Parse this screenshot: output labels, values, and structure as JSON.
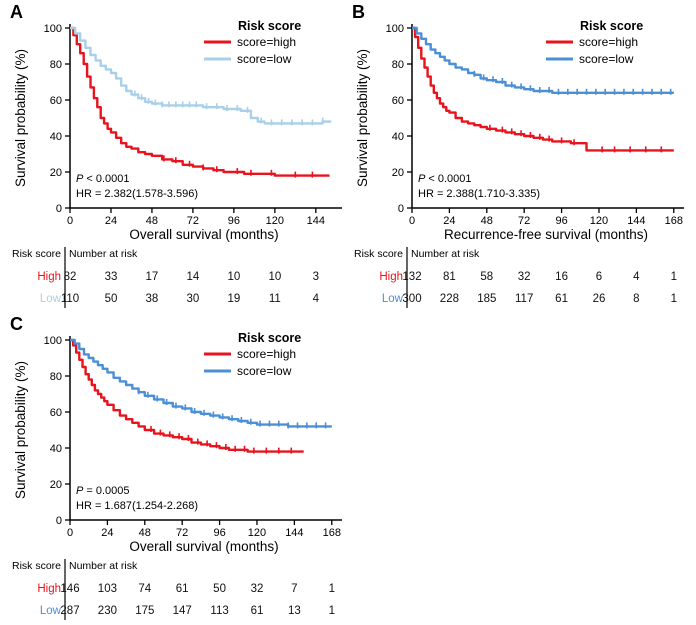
{
  "page": {
    "background": "#ffffff"
  },
  "chart_data": [
    {
      "type": "line",
      "subtype": "kaplan-meier",
      "panel_label": "A",
      "xlabel": "Overall survival (months)",
      "ylabel": "Survival probability (%)",
      "xlim": [
        0,
        157
      ],
      "ylim": [
        0,
        100
      ],
      "xticks": [
        0,
        24,
        48,
        72,
        96,
        120,
        144
      ],
      "yticks": [
        0,
        20,
        40,
        60,
        80,
        100
      ],
      "grid": false,
      "legend_title": "Risk score",
      "legend_position": "top-right",
      "annotations": [
        "P < 0.0001",
        "HR = 2.382(1.578-3.596)"
      ],
      "series": [
        {
          "name": "score=high",
          "color": "#e8131d",
          "step_points": [
            [
              0,
              100
            ],
            [
              2,
              96
            ],
            [
              4,
              91
            ],
            [
              6,
              86
            ],
            [
              8,
              80
            ],
            [
              10,
              73
            ],
            [
              12,
              67
            ],
            [
              14,
              61
            ],
            [
              16,
              56
            ],
            [
              18,
              50
            ],
            [
              20,
              47
            ],
            [
              22,
              44
            ],
            [
              24,
              42
            ],
            [
              27,
              39
            ],
            [
              30,
              36
            ],
            [
              33,
              34
            ],
            [
              36,
              33
            ],
            [
              40,
              31
            ],
            [
              44,
              30
            ],
            [
              48,
              29
            ],
            [
              54,
              27
            ],
            [
              60,
              26
            ],
            [
              66,
              24
            ],
            [
              72,
              23
            ],
            [
              78,
              22
            ],
            [
              84,
              21
            ],
            [
              90,
              20
            ],
            [
              96,
              20
            ],
            [
              102,
              19
            ],
            [
              110,
              19
            ],
            [
              120,
              18
            ],
            [
              152,
              18
            ]
          ],
          "censor_x": [
            55,
            62,
            70,
            78,
            86,
            98,
            106,
            118,
            132,
            142
          ]
        },
        {
          "name": "score=low",
          "color": "#a9cfe9",
          "step_points": [
            [
              0,
              100
            ],
            [
              3,
              97
            ],
            [
              6,
              93
            ],
            [
              9,
              89
            ],
            [
              12,
              85
            ],
            [
              15,
              82
            ],
            [
              18,
              79
            ],
            [
              21,
              77
            ],
            [
              24,
              75
            ],
            [
              27,
              72
            ],
            [
              30,
              68
            ],
            [
              33,
              65
            ],
            [
              36,
              63
            ],
            [
              40,
              61
            ],
            [
              44,
              59
            ],
            [
              48,
              58
            ],
            [
              54,
              57
            ],
            [
              66,
              57
            ],
            [
              72,
              57
            ],
            [
              78,
              56
            ],
            [
              84,
              56
            ],
            [
              90,
              55
            ],
            [
              96,
              55
            ],
            [
              100,
              54
            ],
            [
              106,
              50
            ],
            [
              110,
              48
            ],
            [
              114,
              47
            ],
            [
              120,
              47
            ],
            [
              140,
              47
            ],
            [
              148,
              48
            ],
            [
              153,
              48
            ]
          ],
          "censor_x": [
            38,
            42,
            46,
            50,
            54,
            58,
            62,
            66,
            70,
            74,
            80,
            86,
            92,
            98,
            104,
            112,
            118,
            124,
            130,
            136,
            142,
            148
          ]
        }
      ],
      "risk_table": {
        "col_header": "Risk score",
        "row_header": "Number at risk",
        "rows": [
          {
            "label": "High",
            "color": "#e8131d",
            "counts": [
              82,
              33,
              17,
              14,
              10,
              10,
              3
            ]
          },
          {
            "label": "Low",
            "color": "#a9cfe9",
            "counts": [
              110,
              50,
              38,
              30,
              19,
              11,
              4
            ]
          }
        ]
      }
    },
    {
      "type": "line",
      "subtype": "kaplan-meier",
      "panel_label": "B",
      "xlabel": "Recurrence-free survival (months)",
      "ylabel": "Survival probability (%)",
      "xlim": [
        0,
        172
      ],
      "ylim": [
        0,
        100
      ],
      "xticks": [
        0,
        24,
        48,
        72,
        96,
        120,
        144,
        168
      ],
      "yticks": [
        0,
        20,
        40,
        60,
        80,
        100
      ],
      "grid": false,
      "legend_title": "Risk score",
      "legend_position": "top-right",
      "annotations": [
        "P < 0.0001",
        "HR = 2.388(1.710-3.335)"
      ],
      "series": [
        {
          "name": "score=high",
          "color": "#e8131d",
          "step_points": [
            [
              0,
              100
            ],
            [
              2,
              95
            ],
            [
              4,
              89
            ],
            [
              6,
              83
            ],
            [
              8,
              78
            ],
            [
              10,
              73
            ],
            [
              12,
              68
            ],
            [
              14,
              64
            ],
            [
              16,
              61
            ],
            [
              18,
              58
            ],
            [
              20,
              56
            ],
            [
              22,
              54
            ],
            [
              24,
              53
            ],
            [
              28,
              50
            ],
            [
              32,
              48
            ],
            [
              36,
              47
            ],
            [
              40,
              46
            ],
            [
              44,
              45
            ],
            [
              48,
              44
            ],
            [
              54,
              43
            ],
            [
              60,
              42
            ],
            [
              66,
              41
            ],
            [
              72,
              40
            ],
            [
              78,
              39
            ],
            [
              84,
              38
            ],
            [
              90,
              37
            ],
            [
              102,
              36
            ],
            [
              112,
              32
            ],
            [
              120,
              32
            ],
            [
              168,
              32
            ]
          ],
          "censor_x": [
            50,
            58,
            64,
            70,
            76,
            82,
            88,
            96,
            104,
            122,
            130,
            140,
            150,
            160
          ]
        },
        {
          "name": "score=low",
          "color": "#4b8fd6",
          "step_points": [
            [
              0,
              100
            ],
            [
              3,
              97
            ],
            [
              6,
              94
            ],
            [
              9,
              91
            ],
            [
              12,
              88
            ],
            [
              15,
              86
            ],
            [
              18,
              84
            ],
            [
              21,
              82
            ],
            [
              24,
              80
            ],
            [
              28,
              78
            ],
            [
              32,
              77
            ],
            [
              36,
              75
            ],
            [
              40,
              74
            ],
            [
              44,
              72
            ],
            [
              48,
              71
            ],
            [
              54,
              70
            ],
            [
              60,
              68
            ],
            [
              66,
              67
            ],
            [
              72,
              66
            ],
            [
              78,
              65
            ],
            [
              84,
              65
            ],
            [
              90,
              64
            ],
            [
              96,
              64
            ],
            [
              168,
              64
            ]
          ],
          "censor_x": [
            40,
            46,
            52,
            58,
            64,
            70,
            76,
            82,
            88,
            94,
            100,
            106,
            112,
            118,
            124,
            130,
            136,
            142,
            148,
            154,
            160,
            166
          ]
        }
      ],
      "risk_table": {
        "col_header": "Risk score",
        "row_header": "Number at risk",
        "rows": [
          {
            "label": "High",
            "color": "#e8131d",
            "counts": [
              132,
              81,
              58,
              32,
              16,
              6,
              4,
              1
            ]
          },
          {
            "label": "Low",
            "color": "#4b8fd6",
            "counts": [
              300,
              228,
              185,
              117,
              61,
              26,
              8,
              1
            ]
          }
        ]
      }
    },
    {
      "type": "line",
      "subtype": "kaplan-meier",
      "panel_label": "C",
      "xlabel": "Overall survival (months)",
      "ylabel": "Survival probability (%)",
      "xlim": [
        0,
        172
      ],
      "ylim": [
        0,
        100
      ],
      "xticks": [
        0,
        24,
        48,
        72,
        96,
        120,
        144,
        168
      ],
      "yticks": [
        0,
        20,
        40,
        60,
        80,
        100
      ],
      "grid": false,
      "legend_title": "Risk score",
      "legend_position": "top-right",
      "annotations": [
        "P = 0.0005",
        "HR = 1.687(1.254-2.268)"
      ],
      "series": [
        {
          "name": "score=high",
          "color": "#e8131d",
          "step_points": [
            [
              0,
              100
            ],
            [
              2,
              97
            ],
            [
              4,
              93
            ],
            [
              6,
              89
            ],
            [
              8,
              85
            ],
            [
              10,
              81
            ],
            [
              12,
              78
            ],
            [
              14,
              75
            ],
            [
              16,
              72
            ],
            [
              18,
              70
            ],
            [
              20,
              68
            ],
            [
              22,
              66
            ],
            [
              24,
              64
            ],
            [
              28,
              61
            ],
            [
              32,
              58
            ],
            [
              36,
              56
            ],
            [
              40,
              54
            ],
            [
              44,
              52
            ],
            [
              48,
              50
            ],
            [
              54,
              48
            ],
            [
              60,
              47
            ],
            [
              66,
              46
            ],
            [
              72,
              45
            ],
            [
              78,
              43
            ],
            [
              84,
              42
            ],
            [
              90,
              41
            ],
            [
              96,
              40
            ],
            [
              102,
              39
            ],
            [
              114,
              38
            ],
            [
              120,
              38
            ],
            [
              150,
              38
            ]
          ],
          "censor_x": [
            52,
            58,
            64,
            70,
            76,
            82,
            88,
            94,
            100,
            106,
            112,
            118,
            126,
            134,
            142
          ]
        },
        {
          "name": "score=low",
          "color": "#4b8fd6",
          "step_points": [
            [
              0,
              100
            ],
            [
              3,
              98
            ],
            [
              6,
              95
            ],
            [
              9,
              92
            ],
            [
              12,
              90
            ],
            [
              15,
              88
            ],
            [
              18,
              86
            ],
            [
              21,
              84
            ],
            [
              24,
              82
            ],
            [
              28,
              79
            ],
            [
              32,
              77
            ],
            [
              36,
              75
            ],
            [
              40,
              73
            ],
            [
              44,
              71
            ],
            [
              48,
              69
            ],
            [
              54,
              67
            ],
            [
              60,
              65
            ],
            [
              66,
              63
            ],
            [
              72,
              62
            ],
            [
              78,
              60
            ],
            [
              84,
              59
            ],
            [
              90,
              58
            ],
            [
              96,
              57
            ],
            [
              102,
              56
            ],
            [
              108,
              55
            ],
            [
              114,
              54
            ],
            [
              120,
              53
            ],
            [
              130,
              53
            ],
            [
              140,
              52
            ],
            [
              168,
              52
            ]
          ],
          "censor_x": [
            44,
            50,
            56,
            62,
            68,
            74,
            80,
            86,
            92,
            98,
            104,
            110,
            116,
            122,
            128,
            134,
            140,
            146,
            152,
            158,
            164
          ]
        }
      ],
      "risk_table": {
        "col_header": "Risk score",
        "row_header": "Number at risk",
        "rows": [
          {
            "label": "High",
            "color": "#e8131d",
            "counts": [
              146,
              103,
              74,
              61,
              50,
              32,
              7,
              1
            ]
          },
          {
            "label": "Low",
            "color": "#4b8fd6",
            "counts": [
              287,
              230,
              175,
              147,
              113,
              61,
              13,
              1
            ]
          }
        ]
      }
    }
  ]
}
